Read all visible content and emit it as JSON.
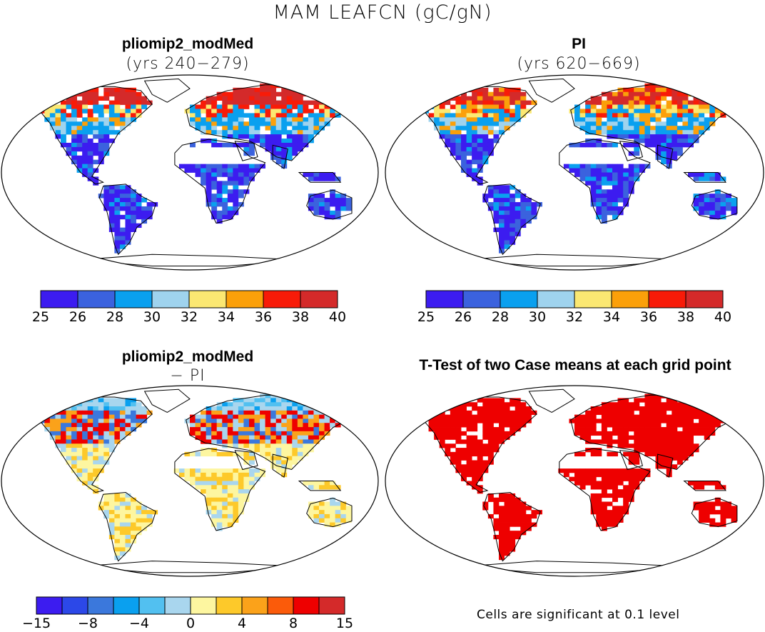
{
  "figure": {
    "title": "MAM LEAFCN (gC/gN)"
  },
  "panels": {
    "top_left": {
      "title": "pliomip2_modMed",
      "subtitle": "(yrs 240−279)"
    },
    "top_right": {
      "title": "PI",
      "subtitle": "(yrs 620−669)"
    },
    "bottom_left": {
      "title": "pliomip2_modMed",
      "subtitle": "− PI"
    },
    "bottom_right": {
      "title": "T-Test of two Case means at each grid point"
    }
  },
  "colorbars": {
    "absolute": {
      "ticks": [
        "25",
        "26",
        "28",
        "30",
        "32",
        "34",
        "36",
        "38",
        "40"
      ],
      "colors": [
        "#3c1cf0",
        "#3b62de",
        "#0aa0ef",
        "#9fd3ee",
        "#fbe872",
        "#fba00a",
        "#f81b08",
        "#d42a2a"
      ]
    },
    "difference": {
      "ticks": [
        "−15",
        "−8",
        "−4",
        "0",
        "4",
        "8",
        "15"
      ],
      "colors": [
        "#3c1cf0",
        "#2c48e8",
        "#3b78dc",
        "#0aa0ef",
        "#52c0f0",
        "#a9d6ee",
        "#fdf6a0",
        "#fdc92a",
        "#fba21a",
        "#fb5b0a",
        "#ee0000",
        "#d42a2a"
      ]
    }
  },
  "significance_note": "Cells are significant at 0.1 level",
  "significance_color": "#ee0000"
}
